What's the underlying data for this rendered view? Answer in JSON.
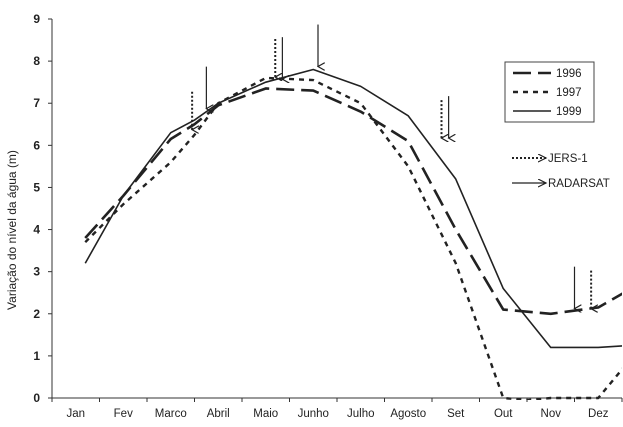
{
  "chart_data": {
    "type": "line",
    "title": "",
    "xlabel": "",
    "ylabel": "Variação do nível da água (m)",
    "categories": [
      "Jan",
      "Fev",
      "Marco",
      "Abril",
      "Maio",
      "Junho",
      "Julho",
      "Agosto",
      "Set",
      "Out",
      "Nov",
      "Dez"
    ],
    "ylim": [
      0,
      9
    ],
    "yticks": [
      "0",
      "1",
      "2",
      "3",
      "4",
      "5",
      "6",
      "7",
      "8",
      "9"
    ],
    "grid": false,
    "legend_position": "right",
    "series": [
      {
        "name": "1996",
        "style": "long-dash",
        "color": "#222222",
        "x": [
          0.2,
          1,
          2,
          2.5,
          3,
          4,
          5,
          6,
          7,
          8,
          9,
          10,
          11,
          11.7
        ],
        "y": [
          3.8,
          4.8,
          6.15,
          6.5,
          6.95,
          7.35,
          7.3,
          6.8,
          6.1,
          4.0,
          2.1,
          2.0,
          2.15,
          2.6
        ]
      },
      {
        "name": "1997",
        "style": "short-dash",
        "color": "#222222",
        "x": [
          0.2,
          1,
          2,
          2.5,
          3,
          4,
          5,
          6,
          7,
          8,
          9,
          9.5,
          10,
          11,
          11.7
        ],
        "y": [
          3.7,
          4.6,
          5.6,
          6.25,
          7.0,
          7.6,
          7.55,
          7.0,
          5.5,
          3.2,
          0.0,
          -0.05,
          0.0,
          0.0,
          0.95
        ]
      },
      {
        "name": "1999",
        "style": "solid",
        "color": "#222222",
        "x": [
          0.2,
          1,
          2,
          2.5,
          3,
          4,
          5,
          6,
          7,
          8,
          9,
          10,
          11,
          11.7
        ],
        "y": [
          3.2,
          4.8,
          6.3,
          6.6,
          7.0,
          7.5,
          7.8,
          7.4,
          6.7,
          5.2,
          2.6,
          1.2,
          1.2,
          1.25
        ]
      }
    ],
    "annotations": {
      "legend_sensors": [
        {
          "name": "JERS-1",
          "style": "dotted-arrow"
        },
        {
          "name": "RADARSAT",
          "style": "solid-arrow"
        }
      ],
      "arrows": [
        {
          "sensor": "JERS-1",
          "x": 2.45,
          "y": 6.3
        },
        {
          "sensor": "RADARSAT",
          "x": 2.75,
          "y": 6.8
        },
        {
          "sensor": "JERS-1",
          "x": 4.2,
          "y": 7.55
        },
        {
          "sensor": "RADARSAT",
          "x": 4.35,
          "y": 7.5
        },
        {
          "sensor": "RADARSAT",
          "x": 5.1,
          "y": 7.8
        },
        {
          "sensor": "JERS-1",
          "x": 7.7,
          "y": 6.1
        },
        {
          "sensor": "RADARSAT",
          "x": 7.85,
          "y": 6.1
        },
        {
          "sensor": "RADARSAT",
          "x": 10.5,
          "y": 2.05
        },
        {
          "sensor": "JERS-1",
          "x": 10.85,
          "y": 2.05
        }
      ]
    }
  }
}
